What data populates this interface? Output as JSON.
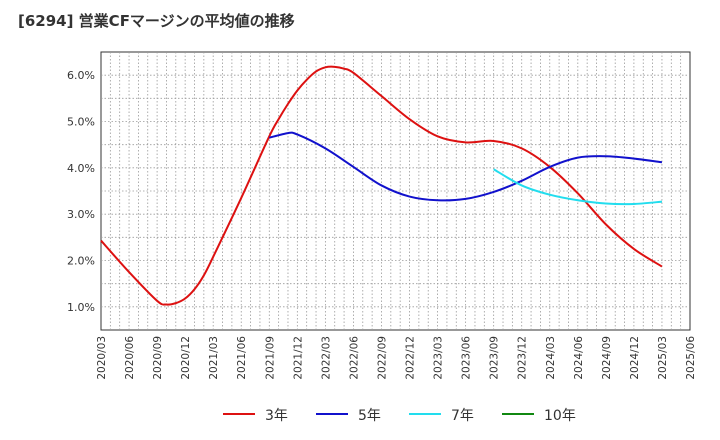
{
  "title": "[6294]  営業CFマージンの平均値の推移",
  "chart_data": {
    "type": "line",
    "title": "[6294]  営業CFマージンの平均値の推移",
    "xlabel": "",
    "ylabel": "",
    "ylim": [
      0.5,
      6.5
    ],
    "yticks": [
      1.0,
      2.0,
      3.0,
      4.0,
      5.0,
      6.0
    ],
    "ytick_labels": [
      "1.0%",
      "2.0%",
      "3.0%",
      "4.0%",
      "5.0%",
      "6.0%"
    ],
    "xtick_labels": [
      "2020/03",
      "2020/06",
      "2020/09",
      "2020/12",
      "2021/03",
      "2021/06",
      "2021/09",
      "2021/12",
      "2022/03",
      "2022/06",
      "2022/09",
      "2022/12",
      "2023/03",
      "2023/06",
      "2023/09",
      "2023/12",
      "2024/03",
      "2024/06",
      "2024/09",
      "2024/12",
      "2025/03",
      "2025/06"
    ],
    "grid": true,
    "legend_position": "bottom",
    "series": [
      {
        "name": "3年",
        "color": "#dd1111",
        "x": [
          "2020/03",
          "2020/06",
          "2020/09",
          "2020/10",
          "2020/11",
          "2020/12",
          "2021/01",
          "2021/02",
          "2021/03",
          "2021/06",
          "2021/09",
          "2021/10",
          "2021/11",
          "2021/12",
          "2022/01",
          "2022/02",
          "2022/03",
          "2022/04",
          "2022/05",
          "2022/06",
          "2022/09",
          "2022/12",
          "2023/03",
          "2023/06",
          "2023/09",
          "2023/12",
          "2024/03",
          "2024/06",
          "2024/09",
          "2024/12",
          "2025/03"
        ],
        "values": [
          2.43,
          1.75,
          1.13,
          1.05,
          1.08,
          1.18,
          1.38,
          1.68,
          2.08,
          3.35,
          4.68,
          5.05,
          5.38,
          5.67,
          5.9,
          6.08,
          6.17,
          6.18,
          6.14,
          6.05,
          5.55,
          5.05,
          4.68,
          4.55,
          4.58,
          4.42,
          4.02,
          3.45,
          2.78,
          2.25,
          1.87
        ]
      },
      {
        "name": "5年",
        "color": "#1111cc",
        "x": [
          "2021/09",
          "2021/11",
          "2021/12",
          "2022/03",
          "2022/06",
          "2022/09",
          "2022/12",
          "2023/03",
          "2023/06",
          "2023/09",
          "2023/12",
          "2024/03",
          "2024/06",
          "2024/09",
          "2024/12",
          "2025/03"
        ],
        "values": [
          4.65,
          4.75,
          4.72,
          4.42,
          4.02,
          3.62,
          3.38,
          3.3,
          3.33,
          3.48,
          3.72,
          4.02,
          4.22,
          4.25,
          4.2,
          4.12
        ]
      },
      {
        "name": "7年",
        "color": "#22ddee",
        "x": [
          "2023/09",
          "2023/12",
          "2024/03",
          "2024/06",
          "2024/09",
          "2024/12",
          "2025/03"
        ],
        "values": [
          3.97,
          3.62,
          3.42,
          3.3,
          3.23,
          3.22,
          3.27
        ]
      },
      {
        "name": "10年",
        "color": "#118811",
        "x": [],
        "values": []
      }
    ]
  }
}
